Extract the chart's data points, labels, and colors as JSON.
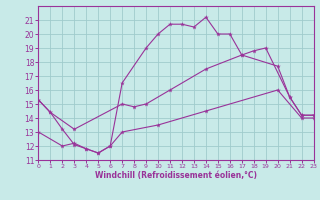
{
  "xlabel": "Windchill (Refroidissement éolien,°C)",
  "bg_color": "#c8eae8",
  "grid_color": "#a0cccc",
  "line_color": "#993399",
  "xlim": [
    0,
    23
  ],
  "ylim": [
    11,
    22
  ],
  "xticks": [
    0,
    1,
    2,
    3,
    4,
    5,
    6,
    7,
    8,
    9,
    10,
    11,
    12,
    13,
    14,
    15,
    16,
    17,
    18,
    19,
    20,
    21,
    22,
    23
  ],
  "yticks": [
    11,
    12,
    13,
    14,
    15,
    16,
    17,
    18,
    19,
    20,
    21
  ],
  "line1_x": [
    0,
    1,
    2,
    3,
    4,
    5,
    6,
    7,
    9,
    10,
    11,
    12,
    13,
    14,
    15,
    16,
    17,
    18,
    19,
    21,
    22,
    23
  ],
  "line1_y": [
    15.3,
    14.4,
    13.2,
    12.1,
    11.8,
    11.5,
    12.0,
    16.5,
    19.0,
    20.0,
    20.7,
    20.7,
    20.5,
    21.2,
    20.0,
    20.0,
    18.5,
    18.8,
    19.0,
    15.5,
    14.2,
    14.2
  ],
  "line2_x": [
    0,
    1,
    3,
    7,
    8,
    9,
    11,
    14,
    17,
    20,
    21,
    22,
    23
  ],
  "line2_y": [
    15.3,
    14.4,
    13.2,
    15.0,
    14.8,
    15.0,
    16.0,
    17.5,
    18.5,
    17.7,
    15.5,
    14.2,
    14.2
  ],
  "line3_x": [
    0,
    2,
    3,
    4,
    5,
    6,
    7,
    10,
    14,
    20,
    22,
    23
  ],
  "line3_y": [
    13.0,
    12.0,
    12.2,
    11.8,
    11.5,
    12.0,
    13.0,
    13.5,
    14.5,
    16.0,
    14.0,
    14.0
  ]
}
